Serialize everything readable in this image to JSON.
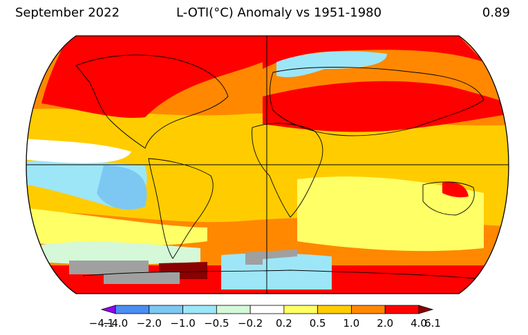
{
  "header": {
    "date": "September 2022",
    "title": "L-OTI(°C) Anomaly vs 1951-1980",
    "global_mean": "0.89"
  },
  "colorbar": {
    "bins": [
      {
        "lo": "−4.1",
        "hi": "−4.0",
        "color": "#8f00ff"
      },
      {
        "lo": "−4.0",
        "hi": "−2.0",
        "color": "#4a8ef0"
      },
      {
        "lo": "−2.0",
        "hi": "−1.0",
        "color": "#7cc8f2"
      },
      {
        "lo": "−1.0",
        "hi": "−0.5",
        "color": "#9de6f8"
      },
      {
        "lo": "−0.5",
        "hi": "−0.2",
        "color": "#d4f8d8"
      },
      {
        "lo": "−0.2",
        "hi": "0.2",
        "color": "#ffffff"
      },
      {
        "lo": "0.2",
        "hi": "0.5",
        "color": "#ffff66"
      },
      {
        "lo": "0.5",
        "hi": "1.0",
        "color": "#ffcc00"
      },
      {
        "lo": "1.0",
        "hi": "2.0",
        "color": "#ff8800"
      },
      {
        "lo": "2.0",
        "hi": "4.0",
        "color": "#ff0000"
      },
      {
        "lo": "4.0",
        "hi": "6.1",
        "color": "#8b0000"
      }
    ],
    "tick_labels": [
      "−4.1",
      "−4.0",
      "−2.0",
      "−1.0",
      "−0.5",
      "−0.2",
      "0.2",
      "0.5",
      "1.0",
      "2.0",
      "4.0",
      "6.1"
    ],
    "missing_color": "#a0a0a0"
  }
}
